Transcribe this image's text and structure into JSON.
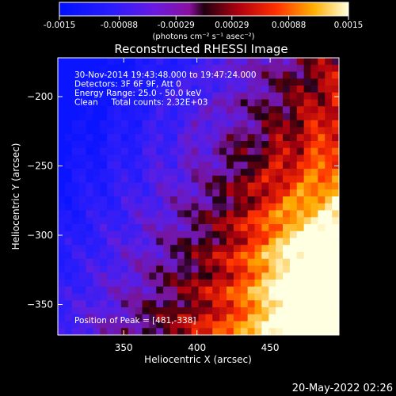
{
  "chart_data": {
    "type": "heatmap",
    "title": "Reconstructed RHESSI Image",
    "xlabel": "Heliocentric X (arcsec)",
    "ylabel": "Heliocentric Y (arcsec)",
    "xlim": [
      305,
      497
    ],
    "ylim": [
      -372,
      -172
    ],
    "x_ticks": [
      350,
      400,
      450
    ],
    "y_ticks": [
      -200,
      -250,
      -300,
      -350
    ],
    "colorbar": {
      "colormap": "blue-purple-red-yellow-white",
      "range": [
        -0.0015,
        0.0015
      ],
      "tick_labels": [
        "-0.0015",
        "-0.00088",
        "-0.00029",
        "0.00029",
        "0.00088",
        "0.0015"
      ],
      "unit_label": "(photons cm⁻² s⁻¹ asec⁻²)"
    },
    "annotations": [
      "30-Nov-2014 19:43:48.000 to 19:47:24.000",
      "Detectors: 3F 6F 9F, Att 0",
      "Energy Range: 25.0 - 50.0 keV",
      "Clean     Total counts: 2.32E+03"
    ],
    "peak_label": "Position of Peak = [481,-338]",
    "peak_position": [
      481,
      -338
    ],
    "intensity_structure": "negative (blue/purple) toward upper-left, positive (red/orange/yellow) toward lower-right, bright maximum near the peak position, ring-like artifacts around (425,-235)"
  },
  "footer_timestamp": "20-May-2022 02:26"
}
